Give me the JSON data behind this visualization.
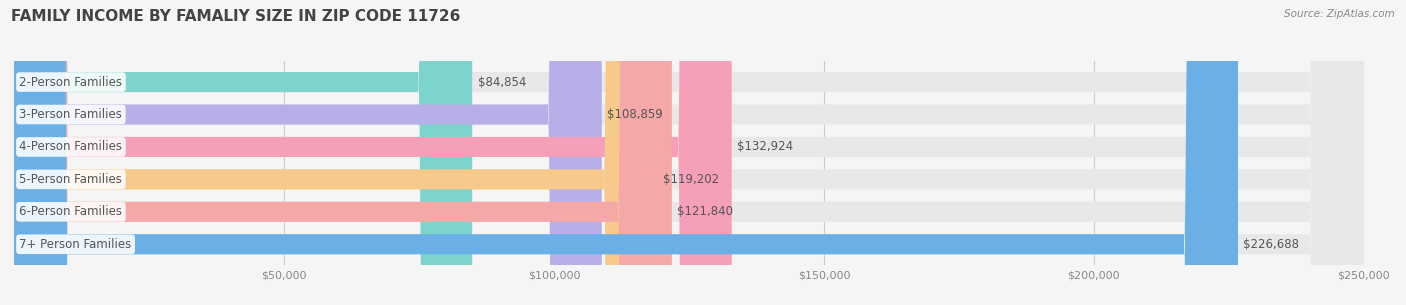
{
  "title": "FAMILY INCOME BY FAMALIY SIZE IN ZIP CODE 11726",
  "source": "Source: ZipAtlas.com",
  "categories": [
    "2-Person Families",
    "3-Person Families",
    "4-Person Families",
    "5-Person Families",
    "6-Person Families",
    "7+ Person Families"
  ],
  "values": [
    84854,
    108859,
    132924,
    119202,
    121840,
    226688
  ],
  "bar_colors": [
    "#7dd4cc",
    "#b8aee8",
    "#f59fb8",
    "#f7c98a",
    "#f4a8a8",
    "#6aafe6"
  ],
  "value_labels": [
    "$84,854",
    "$108,859",
    "$132,924",
    "$119,202",
    "$121,840",
    "$226,688"
  ],
  "xlim": [
    0,
    250000
  ],
  "xticks": [
    0,
    50000,
    100000,
    150000,
    200000,
    250000
  ],
  "xticklabels": [
    "",
    "$50,000",
    "$100,000",
    "$150,000",
    "$200,000",
    "$250,000"
  ],
  "bg_color": "#f5f5f5",
  "bar_bg_color": "#e8e8e8",
  "title_fontsize": 11,
  "label_fontsize": 8.5,
  "value_fontsize": 8.5,
  "tick_fontsize": 8
}
